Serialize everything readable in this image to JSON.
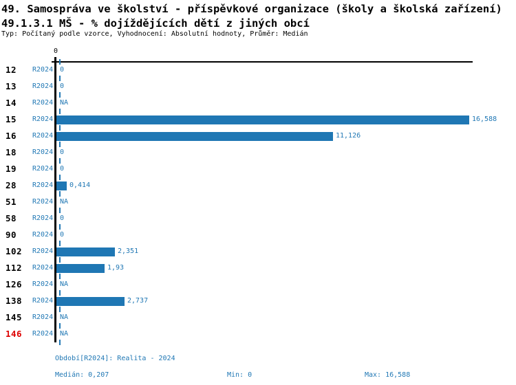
{
  "header": {
    "title": "49. Samospráva ve školství - příspěvkové organizace (školy a školská zařízení)",
    "subtitle": "49.1.3.1 MŠ - % dojíždějících dětí z jiných obcí",
    "meta": "Typ: Počítaný podle vzorce, Vyhodnocení: Absolutní hodnoty, Průměr: Medián"
  },
  "chart_data": {
    "type": "bar",
    "orientation": "horizontal",
    "title": "49.1.3.1 MŠ - % dojíždějících dětí z jiných obcí",
    "axis_top_tick_label": "0",
    "period_label": "R2024",
    "categories": [
      "12",
      "13",
      "14",
      "15",
      "16",
      "18",
      "19",
      "28",
      "51",
      "58",
      "90",
      "102",
      "112",
      "126",
      "138",
      "145",
      "146"
    ],
    "values": [
      0,
      0,
      null,
      16.588,
      11.126,
      0,
      0,
      0.414,
      null,
      0,
      0,
      2.351,
      1.93,
      null,
      2.737,
      null,
      null
    ],
    "value_labels": [
      "0",
      "0",
      "NA",
      "16,588",
      "11,126",
      "0",
      "0",
      "0,414",
      "NA",
      "0",
      "0",
      "2,351",
      "1,93",
      "NA",
      "2,737",
      "NA",
      "NA"
    ],
    "highlighted_category": "146",
    "xlim": [
      0,
      16.588
    ],
    "median": 0.207,
    "grid": false,
    "legend": false,
    "colors": {
      "bar": "#1f77b4",
      "highlight": "#dd0000",
      "axis": "#000000"
    }
  },
  "footer": {
    "period": "Období[R2024]: Realita - 2024",
    "median": "Medián: 0,207",
    "min": "Min: 0",
    "max": "Max: 16,588"
  }
}
